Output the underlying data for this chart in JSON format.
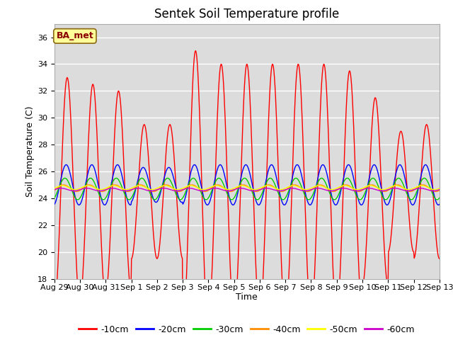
{
  "title": "Sentek Soil Temperature profile",
  "xlabel": "Time",
  "ylabel": "Soil Temperature (C)",
  "ylim": [
    18,
    37
  ],
  "yticks": [
    18,
    20,
    22,
    24,
    26,
    28,
    30,
    32,
    34,
    36
  ],
  "bg_color": "#dcdcdc",
  "annotation_text": "BA_met",
  "annotation_color": "#8B0000",
  "annotation_bg": "#FFFF99",
  "annotation_edge": "#8B6914",
  "legend_entries": [
    "-10cm",
    "-20cm",
    "-30cm",
    "-40cm",
    "-50cm",
    "-60cm"
  ],
  "line_colors": [
    "#FF0000",
    "#0000FF",
    "#00CC00",
    "#FF8C00",
    "#FFFF00",
    "#CC00CC"
  ],
  "date_labels": [
    "Aug 29",
    "Aug 30",
    "Aug 31",
    "Sep 1",
    "Sep 2",
    "Sep 3",
    "Sep 4",
    "Sep 5",
    "Sep 6",
    "Sep 7",
    "Sep 8",
    "Sep 9",
    "Sep 10",
    "Sep 11",
    "Sep 12",
    "Sep 13"
  ],
  "n_days": 15,
  "amp_10_profile": [
    8.5,
    8.0,
    7.5,
    5.0,
    5.0,
    10.5,
    9.5,
    9.5,
    9.5,
    9.5,
    9.5,
    9.0,
    7.0,
    4.5,
    5.0
  ],
  "amp_20_profile": [
    1.5,
    1.5,
    1.5,
    1.3,
    1.3,
    1.5,
    1.5,
    1.5,
    1.5,
    1.5,
    1.5,
    1.5,
    1.5,
    1.5,
    1.5
  ],
  "amp_30": 0.8,
  "amp_40": 0.25,
  "amp_50": 0.15,
  "amp_60": 0.1,
  "base_10": 24.5,
  "base_20": 25.0,
  "base_30": 24.7,
  "base_40": 24.75,
  "base_50": 24.8,
  "base_60": 24.65,
  "phase_20": 0.04,
  "phase_30": 0.09,
  "phase_40": 0.14,
  "phase_50": 0.19,
  "phase_60": 0.24
}
